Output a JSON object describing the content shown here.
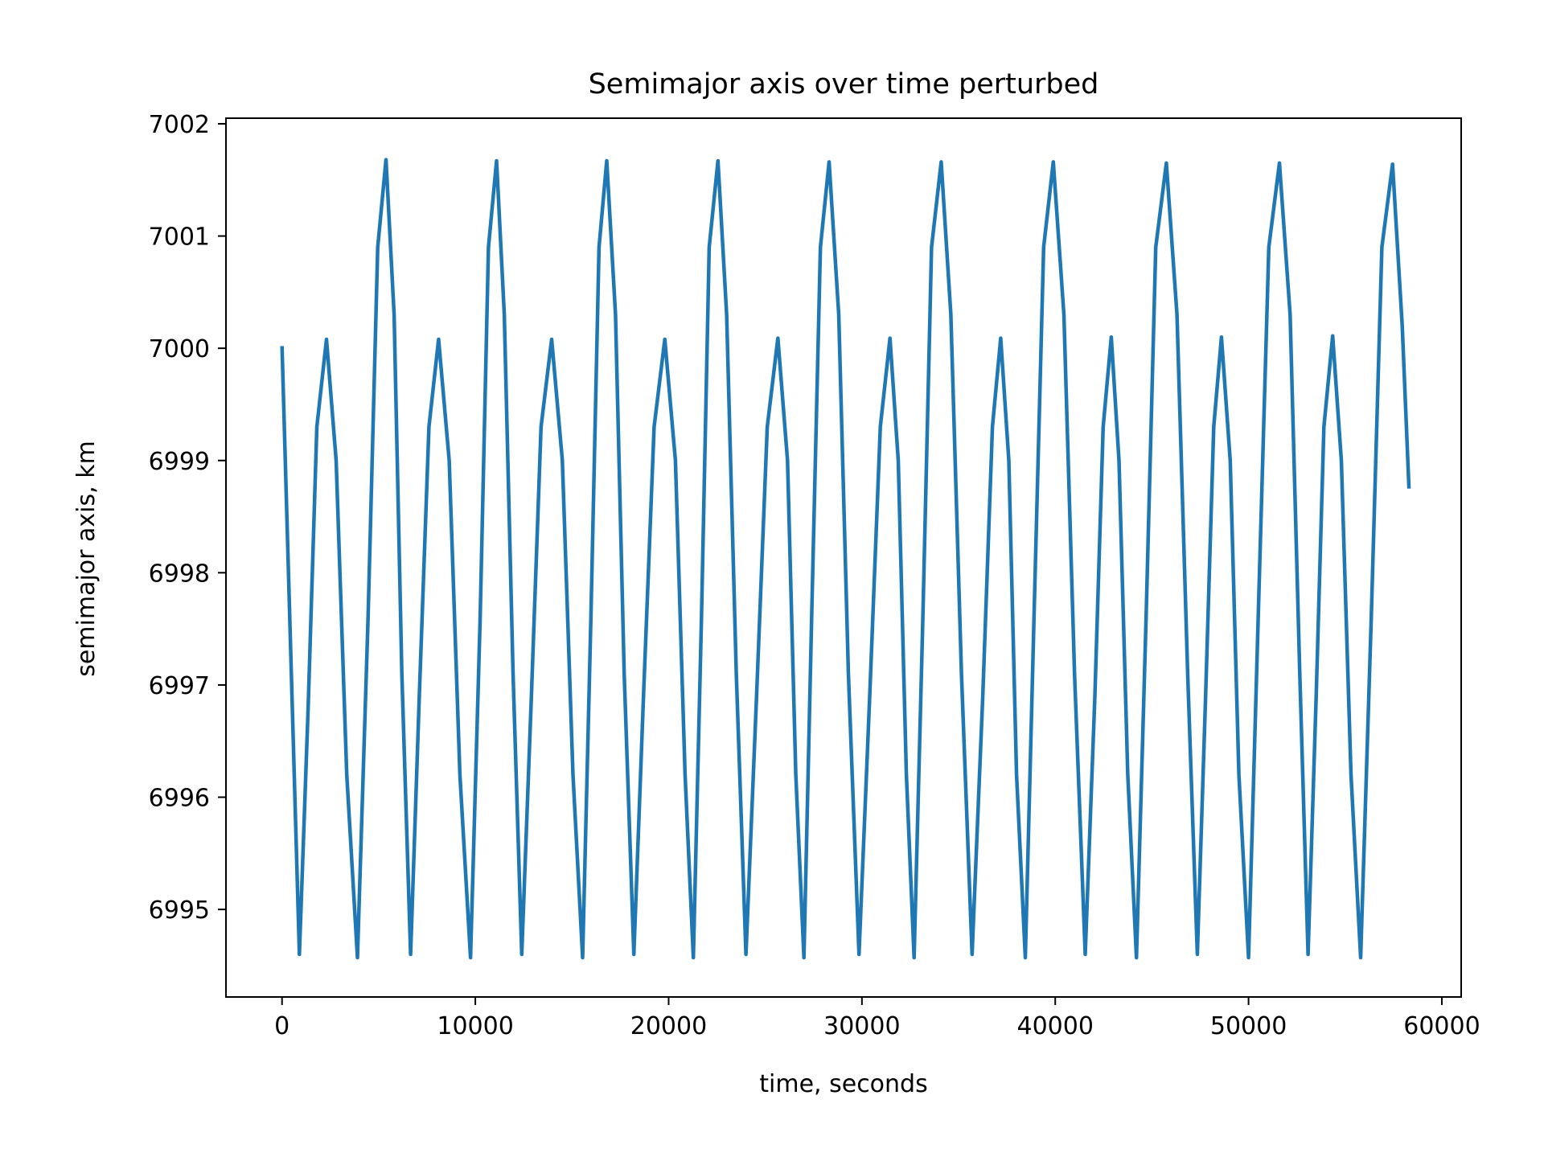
{
  "chart_data": {
    "type": "line",
    "title": "Semimajor axis over time perturbed",
    "xlabel": "time, seconds",
    "ylabel": "semimajor axis, km",
    "xlim": [
      -2900,
      61000
    ],
    "ylim": [
      6994.22,
      7002.05
    ],
    "xticks": [
      0,
      10000,
      20000,
      30000,
      40000,
      50000,
      60000
    ],
    "xtick_labels": [
      "0",
      "10000",
      "20000",
      "30000",
      "40000",
      "50000",
      "60000"
    ],
    "yticks": [
      6995,
      6996,
      6997,
      6998,
      6999,
      7000,
      7001,
      7002
    ],
    "ytick_labels": [
      "6995",
      "6996",
      "6997",
      "6998",
      "6999",
      "7000",
      "7001",
      "7002"
    ],
    "grid": false,
    "legend": "none",
    "line_color": "#1f77b4",
    "series": [
      {
        "x": [
          0,
          450,
          900,
          1350,
          1800,
          2300,
          2800,
          3350,
          3900,
          4450,
          4950,
          5380,
          5800,
          6200,
          6650,
          7100,
          7600,
          8100,
          8650,
          9200,
          9750,
          10250,
          10680,
          11100,
          11500,
          11950,
          12400,
          12900,
          13400,
          13950,
          14500,
          15050,
          15550,
          15980,
          16400,
          16800,
          17250,
          17700,
          18200,
          18700,
          19250,
          19800,
          20350,
          20850,
          21280,
          21700,
          22100,
          22550,
          23000,
          23500,
          24000,
          24550,
          25100,
          25650,
          26150,
          26580,
          27000,
          27400,
          27850,
          28300,
          28800,
          29300,
          29850,
          30400,
          30950,
          31450,
          31880,
          32300,
          32700,
          33150,
          33600,
          34100,
          34600,
          35150,
          35700,
          36250,
          36750,
          37180,
          37600,
          38000,
          38450,
          38900,
          39400,
          39900,
          40450,
          41000,
          41550,
          42050,
          42480,
          42900,
          43300,
          43750,
          44200,
          44700,
          45200,
          45750,
          46300,
          46850,
          47350,
          47780,
          48200,
          48600,
          49050,
          49500,
          50000,
          50500,
          51050,
          51600,
          52150,
          52650,
          53080,
          53500,
          53900,
          54350,
          54800,
          55300,
          55800,
          56350,
          56900,
          57450,
          57950,
          58300
        ],
        "values": [
          7000.02,
          6997.3,
          6994.6,
          6996.8,
          6999.3,
          7000.08,
          6999.0,
          6996.2,
          6994.57,
          6997.6,
          7000.9,
          7001.68,
          7000.3,
          6997.1,
          6994.6,
          6996.9,
          6999.3,
          7000.08,
          6999.0,
          6996.2,
          6994.57,
          6997.6,
          7000.9,
          7001.67,
          7000.3,
          6997.1,
          6994.6,
          6996.9,
          6999.3,
          7000.08,
          6999.0,
          6996.2,
          6994.57,
          6997.6,
          7000.9,
          7001.67,
          7000.3,
          6997.1,
          6994.6,
          6996.9,
          6999.3,
          7000.08,
          6999.0,
          6996.2,
          6994.57,
          6997.6,
          7000.9,
          7001.67,
          7000.3,
          6997.1,
          6994.6,
          6996.9,
          6999.3,
          7000.09,
          6999.0,
          6996.2,
          6994.57,
          6997.6,
          7000.9,
          7001.66,
          7000.3,
          6997.1,
          6994.6,
          6996.9,
          6999.3,
          7000.09,
          6999.0,
          6996.2,
          6994.57,
          6997.6,
          7000.9,
          7001.66,
          7000.3,
          6997.1,
          6994.6,
          6996.9,
          6999.3,
          7000.09,
          6999.0,
          6996.2,
          6994.57,
          6997.6,
          7000.9,
          7001.66,
          7000.3,
          6997.1,
          6994.6,
          6996.9,
          6999.3,
          7000.1,
          6999.0,
          6996.2,
          6994.57,
          6997.6,
          7000.9,
          7001.65,
          7000.3,
          6997.1,
          6994.6,
          6996.9,
          6999.3,
          7000.1,
          6999.0,
          6996.2,
          6994.57,
          6997.6,
          7000.9,
          7001.65,
          7000.3,
          6997.1,
          6994.6,
          6996.9,
          6999.3,
          7000.11,
          6999.0,
          6996.2,
          6994.57,
          6997.6,
          7000.9,
          7001.64,
          7000.2,
          6998.75
        ]
      }
    ]
  }
}
